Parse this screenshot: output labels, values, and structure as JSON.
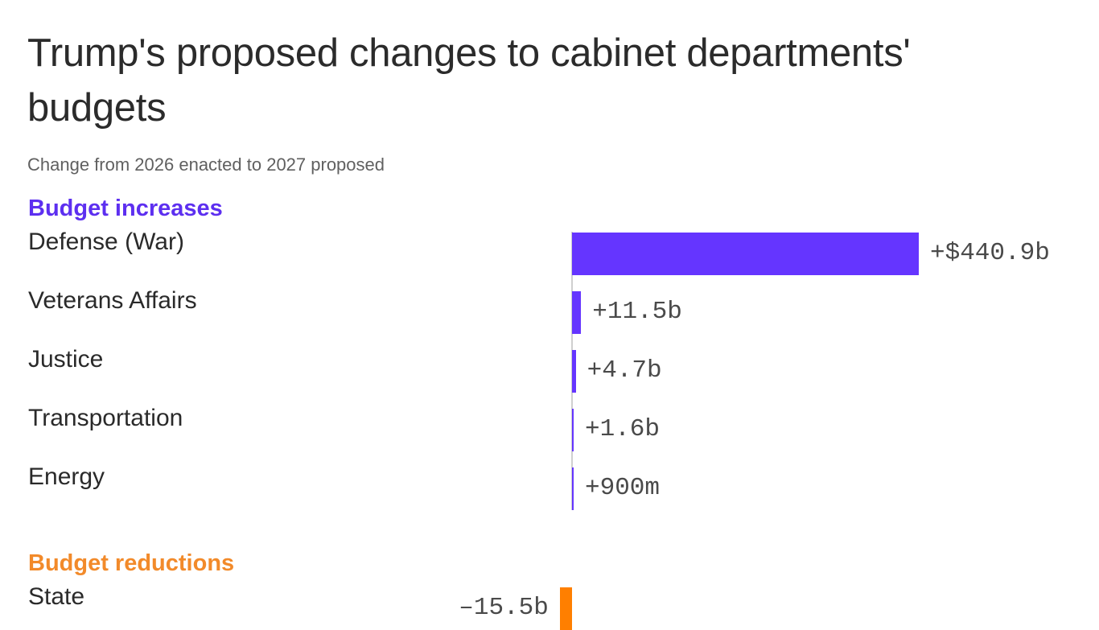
{
  "colors": {
    "increase": "#6535ff",
    "increase_heading": "#5d2ff0",
    "decrease": "#ff7f00",
    "decrease_heading": "#f28a2a"
  },
  "chart_data": {
    "type": "bar",
    "orientation": "horizontal",
    "title": "Trump's proposed changes to cabinet departments' budgets",
    "subtitle": "Change from 2026 enacted to 2027 proposed",
    "units": "billions of dollars",
    "groups": [
      {
        "heading": "Budget increases",
        "color": "#6535ff",
        "categories": [
          "Defense (War)",
          "Veterans Affairs",
          "Justice",
          "Transportation",
          "Energy"
        ],
        "values": [
          440.9,
          11.5,
          4.7,
          1.6,
          0.9
        ],
        "value_labels": [
          "+$440.9b",
          "+11.5b",
          "+4.7b",
          "+1.6b",
          "+900m"
        ]
      },
      {
        "heading": "Budget reductions",
        "color": "#ff7f00",
        "categories": [
          "State"
        ],
        "values": [
          -15.5
        ],
        "value_labels": [
          "–15.5b"
        ]
      }
    ]
  }
}
